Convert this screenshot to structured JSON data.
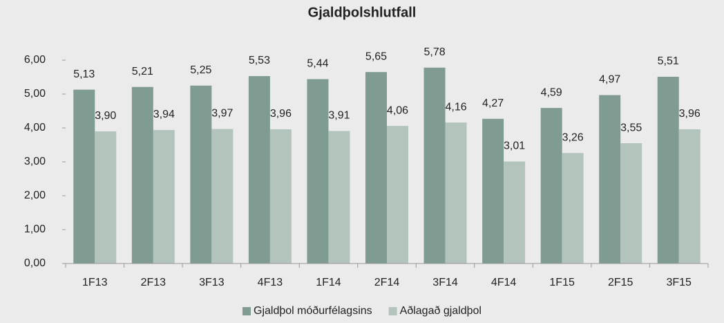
{
  "chart_data": {
    "type": "bar",
    "title": "Gjaldþolshlutfall",
    "categories": [
      "1F13",
      "2F13",
      "3F13",
      "4F13",
      "1F14",
      "2F14",
      "3F14",
      "4F14",
      "1F15",
      "2F15",
      "3F15"
    ],
    "series": [
      {
        "name": "Gjaldþol móðurfélagsins",
        "color": "#7f9b92",
        "values": [
          5.13,
          5.21,
          5.25,
          5.53,
          5.44,
          5.65,
          5.78,
          4.27,
          4.59,
          4.97,
          5.51
        ],
        "value_labels": [
          "5,13",
          "5,21",
          "5,25",
          "5,53",
          "5,44",
          "5,65",
          "5,78",
          "4,27",
          "4,59",
          "4,97",
          "5,51"
        ]
      },
      {
        "name": "Aðlagað gjaldþol",
        "color": "#b3c4bd",
        "values": [
          3.9,
          3.94,
          3.97,
          3.96,
          3.91,
          4.06,
          4.16,
          3.01,
          3.26,
          3.55,
          3.96
        ],
        "value_labels": [
          "3,90",
          "3,94",
          "3,97",
          "3,96",
          "3,91",
          "4,06",
          "4,16",
          "3,01",
          "3,26",
          "3,55",
          "3,96"
        ]
      }
    ],
    "ylim": [
      0,
      6
    ],
    "yticks": [
      {
        "value": 0,
        "label": "0,00"
      },
      {
        "value": 1,
        "label": "1,00"
      },
      {
        "value": 2,
        "label": "2,00"
      },
      {
        "value": 3,
        "label": "3,00"
      },
      {
        "value": 4,
        "label": "4,00"
      },
      {
        "value": 5,
        "label": "5,00"
      },
      {
        "value": 6,
        "label": "6,00"
      }
    ],
    "grid": false,
    "legend": "bottom"
  }
}
